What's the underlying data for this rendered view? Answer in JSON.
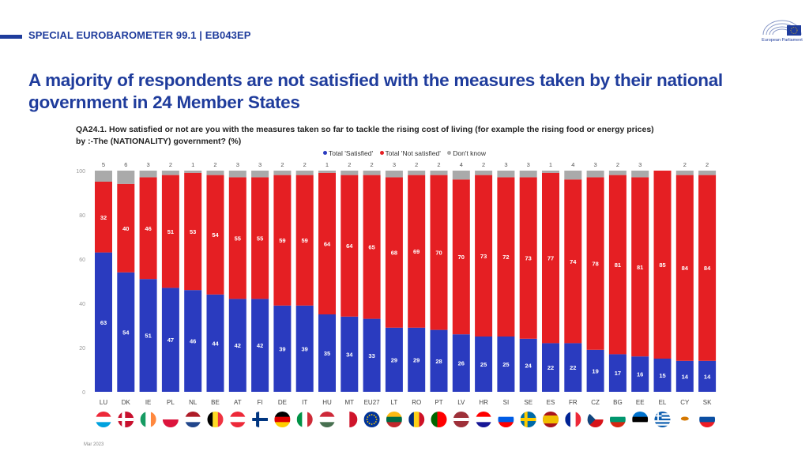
{
  "header": {
    "series_label": "SPECIAL EUROBAROMETER 99.1 | EB043EP",
    "logo_text": "European Parliament",
    "title": "A majority of respondents are not satisfied with the measures taken by their national government in 24 Member States",
    "question_line1": "QA24.1. How satisfied or not are you with the measures taken so far to tackle the rising cost of living (for example the rising food or energy prices)",
    "question_line2": "by :-The (NATIONALITY) government? (%)"
  },
  "footer": {
    "date": "Mar 2023"
  },
  "colors": {
    "satisfied": "#2a3bbf",
    "not_satisfied": "#e51f23",
    "dont_know": "#aaaaaa",
    "brand": "#1f3c9c"
  },
  "chart_data": {
    "type": "bar",
    "stacked": true,
    "legend": [
      "Total 'Satisfied'",
      "Total 'Not satisfied'",
      "Don't know"
    ],
    "legend_position": "top",
    "ylim": [
      0,
      100
    ],
    "yticks": [
      "0",
      "20",
      "40",
      "60",
      "80",
      "100"
    ],
    "categories": [
      "LU",
      "DK",
      "IE",
      "PL",
      "NL",
      "BE",
      "AT",
      "FI",
      "DE",
      "IT",
      "HU",
      "MT",
      "EU27",
      "LT",
      "RO",
      "PT",
      "LV",
      "HR",
      "SI",
      "SE",
      "ES",
      "FR",
      "CZ",
      "BG",
      "EE",
      "EL",
      "CY",
      "SK"
    ],
    "series": [
      {
        "name": "Total 'Satisfied'",
        "values": [
          63,
          54,
          51,
          47,
          46,
          44,
          42,
          42,
          39,
          39,
          35,
          34,
          33,
          29,
          29,
          28,
          26,
          25,
          25,
          24,
          22,
          22,
          19,
          17,
          16,
          15,
          14,
          14
        ]
      },
      {
        "name": "Total 'Not satisfied'",
        "values": [
          32,
          40,
          46,
          51,
          53,
          54,
          55,
          55,
          59,
          59,
          64,
          64,
          65,
          68,
          69,
          70,
          70,
          73,
          72,
          73,
          77,
          74,
          78,
          81,
          81,
          85,
          84,
          84
        ]
      },
      {
        "name": "Don't know",
        "values": [
          5,
          6,
          3,
          2,
          1,
          2,
          3,
          3,
          2,
          2,
          1,
          2,
          2,
          3,
          2,
          2,
          4,
          2,
          3,
          3,
          1,
          4,
          3,
          2,
          3,
          null,
          2,
          2
        ]
      }
    ],
    "flags": [
      {
        "code": "LU",
        "type": "h",
        "colors": [
          "#ed2939",
          "#ffffff",
          "#00a1de"
        ]
      },
      {
        "code": "DK",
        "type": "nordic",
        "colors": [
          "#c8102e",
          "#ffffff"
        ]
      },
      {
        "code": "IE",
        "type": "v",
        "colors": [
          "#169b62",
          "#ffffff",
          "#ff883e"
        ]
      },
      {
        "code": "PL",
        "type": "h",
        "colors": [
          "#ffffff",
          "#dc143c"
        ]
      },
      {
        "code": "NL",
        "type": "h",
        "colors": [
          "#ae1c28",
          "#ffffff",
          "#21468b"
        ]
      },
      {
        "code": "BE",
        "type": "v",
        "colors": [
          "#000000",
          "#fdda24",
          "#ef3340"
        ]
      },
      {
        "code": "AT",
        "type": "h",
        "colors": [
          "#ed2939",
          "#ffffff",
          "#ed2939"
        ]
      },
      {
        "code": "FI",
        "type": "nordic",
        "colors": [
          "#ffffff",
          "#003580"
        ]
      },
      {
        "code": "DE",
        "type": "h",
        "colors": [
          "#000000",
          "#dd0000",
          "#ffce00"
        ]
      },
      {
        "code": "IT",
        "type": "v",
        "colors": [
          "#009246",
          "#ffffff",
          "#ce2b37"
        ]
      },
      {
        "code": "HU",
        "type": "h",
        "colors": [
          "#ce2939",
          "#ffffff",
          "#477050"
        ]
      },
      {
        "code": "MT",
        "type": "v",
        "colors": [
          "#ffffff",
          "#cf142b"
        ]
      },
      {
        "code": "EU27",
        "type": "eu",
        "colors": [
          "#003399",
          "#ffcc00"
        ]
      },
      {
        "code": "LT",
        "type": "h",
        "colors": [
          "#fdb913",
          "#006a44",
          "#c1272d"
        ]
      },
      {
        "code": "RO",
        "type": "v",
        "colors": [
          "#002b7f",
          "#fcd116",
          "#ce1126"
        ]
      },
      {
        "code": "PT",
        "type": "v2",
        "colors": [
          "#006600",
          "#ff0000"
        ]
      },
      {
        "code": "LV",
        "type": "lv",
        "colors": [
          "#9e3039",
          "#ffffff"
        ]
      },
      {
        "code": "HR",
        "type": "h",
        "colors": [
          "#ff0000",
          "#ffffff",
          "#171796"
        ]
      },
      {
        "code": "SI",
        "type": "h",
        "colors": [
          "#ffffff",
          "#005ce5",
          "#ff0000"
        ]
      },
      {
        "code": "SE",
        "type": "nordic",
        "colors": [
          "#006aa7",
          "#fecc00"
        ]
      },
      {
        "code": "ES",
        "type": "es",
        "colors": [
          "#aa151b",
          "#f1bf00"
        ]
      },
      {
        "code": "FR",
        "type": "v",
        "colors": [
          "#002395",
          "#ffffff",
          "#ed2939"
        ]
      },
      {
        "code": "CZ",
        "type": "cz",
        "colors": [
          "#ffffff",
          "#d7141a",
          "#11457e"
        ]
      },
      {
        "code": "BG",
        "type": "h",
        "colors": [
          "#ffffff",
          "#00966e",
          "#d62612"
        ]
      },
      {
        "code": "EE",
        "type": "h",
        "colors": [
          "#0072ce",
          "#000000",
          "#ffffff"
        ]
      },
      {
        "code": "EL",
        "type": "gr",
        "colors": [
          "#0d5eaf",
          "#ffffff"
        ]
      },
      {
        "code": "CY",
        "type": "cy",
        "colors": [
          "#ffffff",
          "#d57800"
        ]
      },
      {
        "code": "SK",
        "type": "h",
        "colors": [
          "#ffffff",
          "#0b4ea2",
          "#ee1c25"
        ]
      }
    ]
  }
}
